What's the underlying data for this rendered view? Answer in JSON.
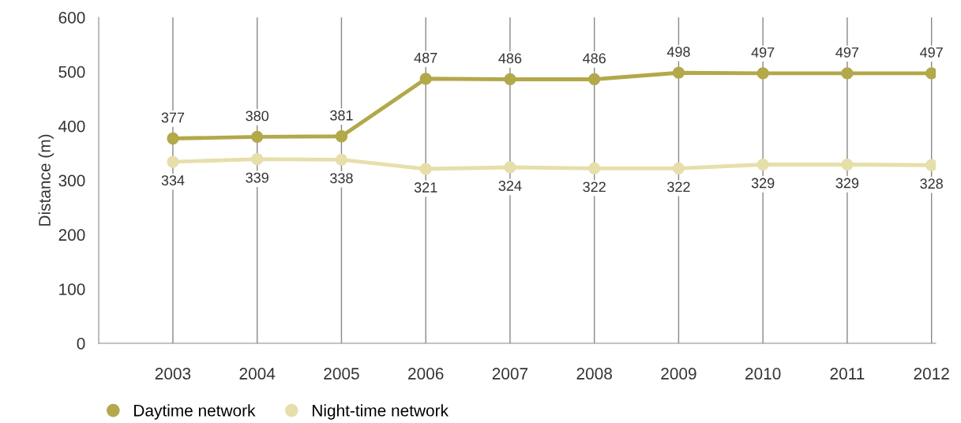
{
  "chart_data": {
    "type": "line",
    "ylabel": "Distance (m)",
    "categories": [
      "2003",
      "2004",
      "2005",
      "2006",
      "2007",
      "2008",
      "2009",
      "2010",
      "2011",
      "2012"
    ],
    "series": [
      {
        "name": "Daytime network",
        "color": "#b3a84a",
        "values": [
          377,
          380,
          381,
          487,
          486,
          486,
          498,
          497,
          497,
          497
        ]
      },
      {
        "name": "Night-time network",
        "color": "#e6dfaa",
        "values": [
          334,
          339,
          338,
          321,
          324,
          322,
          322,
          329,
          329,
          328
        ]
      }
    ],
    "ylim": [
      0,
      600
    ],
    "yticks": [
      0,
      100,
      200,
      300,
      400,
      500,
      600
    ],
    "grid": "x",
    "legend": "bottom left",
    "marker": "circle",
    "line_style": "solid",
    "data_labels": true
  }
}
